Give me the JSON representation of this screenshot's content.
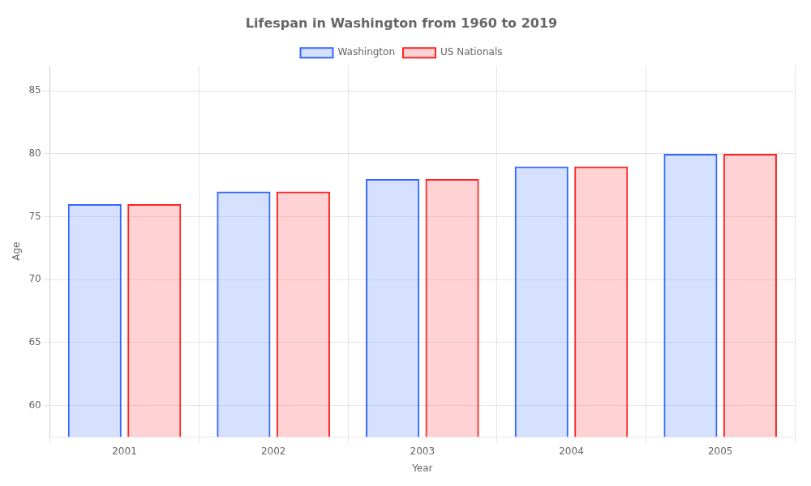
{
  "chart_data": {
    "type": "bar",
    "title": "Lifespan in Washington from 1960 to 2019",
    "x_label": "Year",
    "y_label": "Age",
    "categories": [
      "2001",
      "2002",
      "2003",
      "2004",
      "2005"
    ],
    "series": [
      {
        "name": "Washington",
        "color": "#3366ff",
        "values": [
          76,
          77,
          78,
          79,
          80
        ]
      },
      {
        "name": "US Nationals",
        "color": "#ff2222",
        "values": [
          76,
          77,
          78,
          79,
          80
        ]
      }
    ],
    "ylim": [
      57.5,
      87
    ],
    "yticks": [
      60,
      65,
      70,
      75,
      80,
      85
    ],
    "grid": true,
    "legend": "top"
  }
}
